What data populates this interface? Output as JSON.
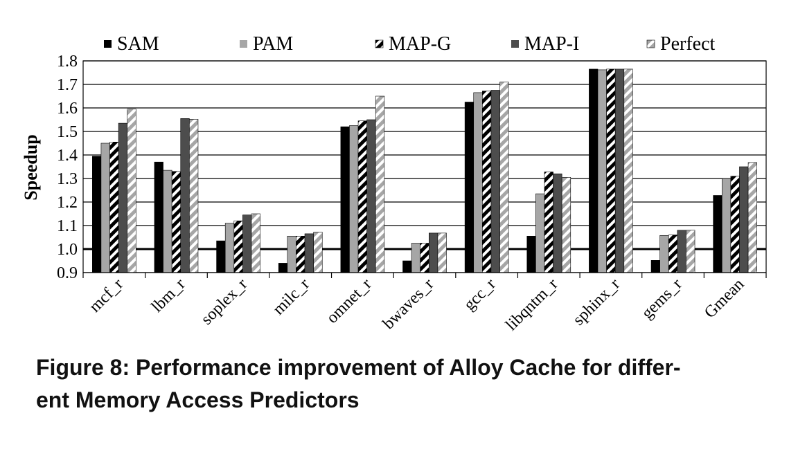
{
  "chart_data": {
    "type": "bar",
    "categories": [
      "mcf_r",
      "lbm_r",
      "soplex_r",
      "milc_r",
      "omnet_r",
      "bwaves_r",
      "gcc_r",
      "libqntm_r",
      "sphinx_r",
      "gems_r",
      "Gmean"
    ],
    "series": [
      {
        "name": "SAM",
        "color": "#000000",
        "pattern": "solid",
        "values": [
          1.395,
          1.37,
          1.035,
          0.94,
          1.52,
          0.95,
          1.625,
          1.055,
          1.765,
          0.952,
          1.228
        ]
      },
      {
        "name": "PAM",
        "color": "#a6a6a6",
        "pattern": "solid",
        "values": [
          1.45,
          1.335,
          1.11,
          1.055,
          1.525,
          1.025,
          1.665,
          1.235,
          1.762,
          1.058,
          1.3
        ]
      },
      {
        "name": "MAP-G",
        "color": "#000000",
        "pattern": "diagonal-stripes-black-white",
        "values": [
          1.455,
          1.33,
          1.12,
          1.055,
          1.545,
          1.025,
          1.672,
          1.328,
          1.765,
          1.06,
          1.31
        ]
      },
      {
        "name": "MAP-I",
        "color": "#4d4d4d",
        "pattern": "solid",
        "values": [
          1.535,
          1.555,
          1.145,
          1.065,
          1.55,
          1.068,
          1.675,
          1.32,
          1.765,
          1.08,
          1.35
        ]
      },
      {
        "name": "Perfect",
        "color": "#a6a6a6",
        "pattern": "diagonal-stripes-gray-white",
        "values": [
          1.595,
          1.552,
          1.15,
          1.072,
          1.65,
          1.068,
          1.71,
          1.305,
          1.765,
          1.08,
          1.368
        ]
      }
    ],
    "ylabel": "Speedup",
    "xlabel": "",
    "ylim": [
      0.9,
      1.8
    ],
    "yticks": [
      "0.9",
      "1.0",
      "1.1",
      "1.2",
      "1.3",
      "1.4",
      "1.5",
      "1.6",
      "1.7",
      "1.8"
    ],
    "reference_line": 1.0,
    "grid": true,
    "legend_position": "top"
  },
  "caption": {
    "line1": "Figure 8: Performance improvement of Alloy Cache for differ-",
    "line2": "ent Memory Access Predictors"
  }
}
